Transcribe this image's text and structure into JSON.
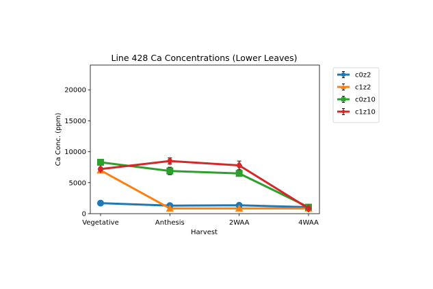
{
  "chart_data": {
    "type": "line",
    "title": "Line 428 Ca Concentrations (Lower Leaves)",
    "xlabel": "Harvest",
    "ylabel": "Ca Conc. (ppm)",
    "categories": [
      "Vegetative",
      "Anthesis",
      "2WAA",
      "4WAA"
    ],
    "ylim": [
      0,
      24000
    ],
    "yticks": [
      0,
      5000,
      10000,
      15000,
      20000
    ],
    "legend_position": "outside-top-right",
    "grid": false,
    "series": [
      {
        "name": "c0z2",
        "marker": "circle",
        "color": "#1f77b4",
        "values": [
          1700,
          1300,
          1350,
          1050
        ],
        "errors": [
          150,
          150,
          150,
          100
        ]
      },
      {
        "name": "c1z2",
        "marker": "triangle",
        "color": "#ff7f0e",
        "values": [
          7000,
          850,
          850,
          850
        ],
        "errors": [
          200,
          100,
          100,
          100
        ]
      },
      {
        "name": "c0z10",
        "marker": "square",
        "color": "#2ca02c",
        "values": [
          8300,
          6900,
          6500,
          1050
        ],
        "errors": [
          250,
          600,
          400,
          100
        ]
      },
      {
        "name": "c1z10",
        "marker": "diamond",
        "color": "#d62728",
        "values": [
          7200,
          8500,
          7800,
          850
        ],
        "errors": [
          300,
          500,
          700,
          100
        ]
      }
    ]
  }
}
